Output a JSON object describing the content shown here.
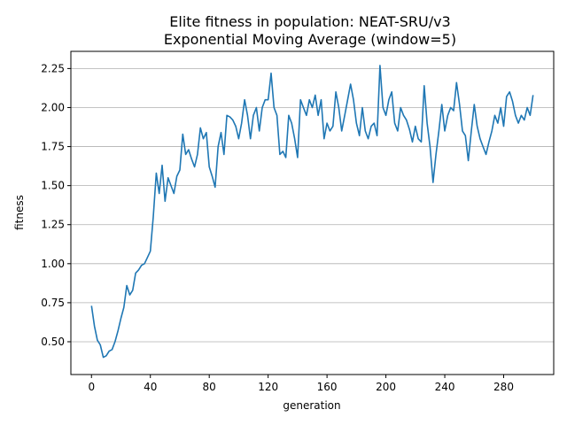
{
  "chart_data": {
    "type": "line",
    "title": "Elite fitness in population: NEAT-SRU/v3",
    "subtitle": "Exponential Moving Average (window=5)",
    "xlabel": "generation",
    "ylabel": "fitness",
    "xlim": [
      -14,
      314
    ],
    "ylim": [
      0.29,
      2.36
    ],
    "xticks": [
      0,
      40,
      80,
      120,
      160,
      200,
      240,
      280
    ],
    "yticks": [
      0.5,
      0.75,
      1.0,
      1.25,
      1.5,
      1.75,
      2.0,
      2.25
    ],
    "ytick_labels": [
      "0.50",
      "0.75",
      "1.00",
      "1.25",
      "1.50",
      "1.75",
      "2.00",
      "2.25"
    ],
    "grid": "horizontal",
    "color": "#1f77b4",
    "series": [
      {
        "x": [
          0,
          2,
          4,
          6,
          8,
          10,
          12,
          14,
          16,
          18,
          20,
          22,
          24,
          26,
          28,
          30,
          32,
          34,
          36,
          38,
          40,
          42,
          44,
          46,
          48,
          50,
          52,
          54,
          56,
          58,
          60,
          62,
          64,
          66,
          68,
          70,
          72,
          74,
          76,
          78,
          80,
          82,
          84,
          86,
          88,
          90,
          92,
          94,
          96,
          98,
          100,
          102,
          104,
          106,
          108,
          110,
          112,
          114,
          116,
          118,
          120,
          122,
          124,
          126,
          128,
          130,
          132,
          134,
          136,
          138,
          140,
          142,
          144,
          146,
          148,
          150,
          152,
          154,
          156,
          158,
          160,
          162,
          164,
          166,
          168,
          170,
          172,
          174,
          176,
          178,
          180,
          182,
          184,
          186,
          188,
          190,
          192,
          194,
          196,
          198,
          200,
          202,
          204,
          206,
          208,
          210,
          212,
          214,
          216,
          218,
          220,
          222,
          224,
          226,
          228,
          230,
          232,
          234,
          236,
          238,
          240,
          242,
          244,
          246,
          248,
          250,
          252,
          254,
          256,
          258,
          260,
          262,
          264,
          266,
          268,
          270,
          272,
          274,
          276,
          278,
          280,
          282,
          284,
          286,
          288,
          290,
          292,
          294,
          296,
          298,
          300
        ],
        "y": [
          0.73,
          0.6,
          0.51,
          0.48,
          0.4,
          0.41,
          0.44,
          0.45,
          0.5,
          0.57,
          0.65,
          0.72,
          0.86,
          0.8,
          0.83,
          0.94,
          0.96,
          0.99,
          1.0,
          1.04,
          1.08,
          1.3,
          1.58,
          1.45,
          1.63,
          1.4,
          1.55,
          1.5,
          1.45,
          1.56,
          1.6,
          1.83,
          1.7,
          1.73,
          1.67,
          1.62,
          1.7,
          1.87,
          1.8,
          1.84,
          1.62,
          1.56,
          1.49,
          1.75,
          1.84,
          1.7,
          1.95,
          1.94,
          1.92,
          1.88,
          1.8,
          1.9,
          2.05,
          1.95,
          1.8,
          1.95,
          2.0,
          1.85,
          2.0,
          2.05,
          2.05,
          2.22,
          2.0,
          1.95,
          1.7,
          1.72,
          1.68,
          1.95,
          1.9,
          1.8,
          1.68,
          2.05,
          2.0,
          1.95,
          2.05,
          2.0,
          2.08,
          1.95,
          2.05,
          1.8,
          1.9,
          1.85,
          1.88,
          2.1,
          2.0,
          1.85,
          1.95,
          2.05,
          2.15,
          2.05,
          1.9,
          1.82,
          2.0,
          1.85,
          1.8,
          1.88,
          1.9,
          1.82,
          2.27,
          2.0,
          1.95,
          2.05,
          2.1,
          1.9,
          1.85,
          2.0,
          1.95,
          1.92,
          1.86,
          1.78,
          1.88,
          1.8,
          1.78,
          2.14,
          1.9,
          1.75,
          1.52,
          1.7,
          1.85,
          2.02,
          1.85,
          1.95,
          2.0,
          1.98,
          2.16,
          2.02,
          1.85,
          1.82,
          1.66,
          1.85,
          2.02,
          1.88,
          1.8,
          1.75,
          1.7,
          1.78,
          1.85,
          1.95,
          1.9,
          2.0,
          1.88,
          2.07,
          2.1,
          2.04,
          1.95,
          1.9,
          1.95,
          1.92,
          2.0,
          1.95,
          2.08
        ]
      }
    ]
  }
}
